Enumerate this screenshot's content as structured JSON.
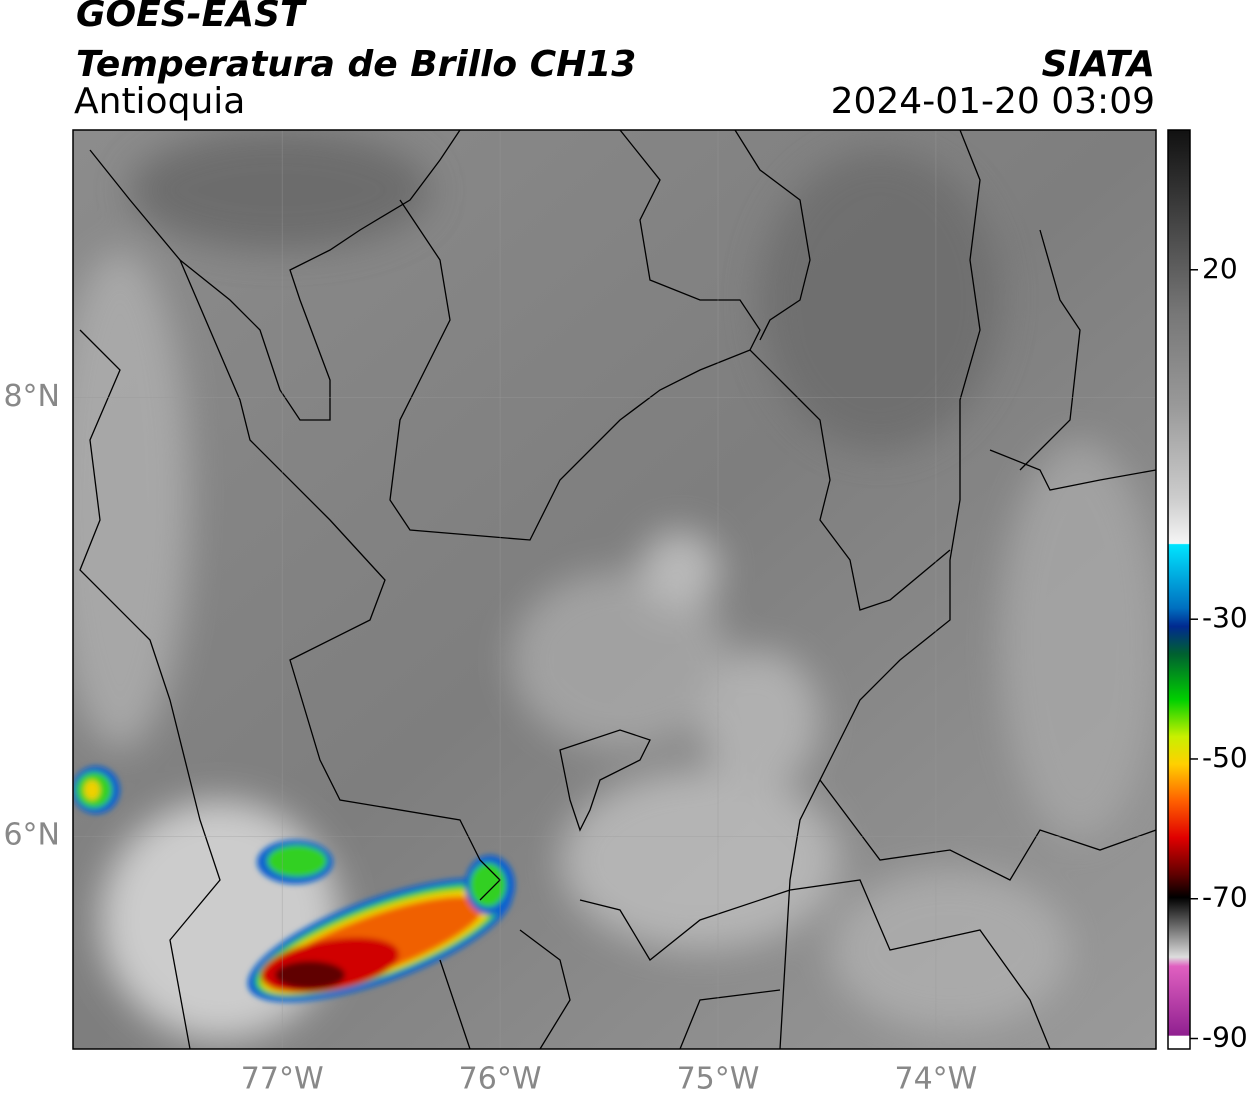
{
  "header": {
    "title": "GOES-EAST",
    "subtitle": "Temperatura de Brillo CH13",
    "region": "Antioquia",
    "source": "SIATA",
    "datetime": "2024-01-20 03:09"
  },
  "map": {
    "xlim": [
      -77.96,
      -72.99
    ],
    "ylim": [
      5.03,
      9.22
    ],
    "xticks": [
      {
        "value": -77,
        "label": "77°W"
      },
      {
        "value": -76,
        "label": "76°W"
      },
      {
        "value": -75,
        "label": "75°W"
      },
      {
        "value": -74,
        "label": "74°W"
      }
    ],
    "yticks": [
      {
        "value": 8,
        "label": "8°N"
      },
      {
        "value": 6,
        "label": "6°N"
      }
    ],
    "grid": true
  },
  "colorbar": {
    "lim": [
      -91.5,
      40
    ],
    "ticks": [
      20,
      -30,
      -50,
      -70,
      -90
    ]
  }
}
